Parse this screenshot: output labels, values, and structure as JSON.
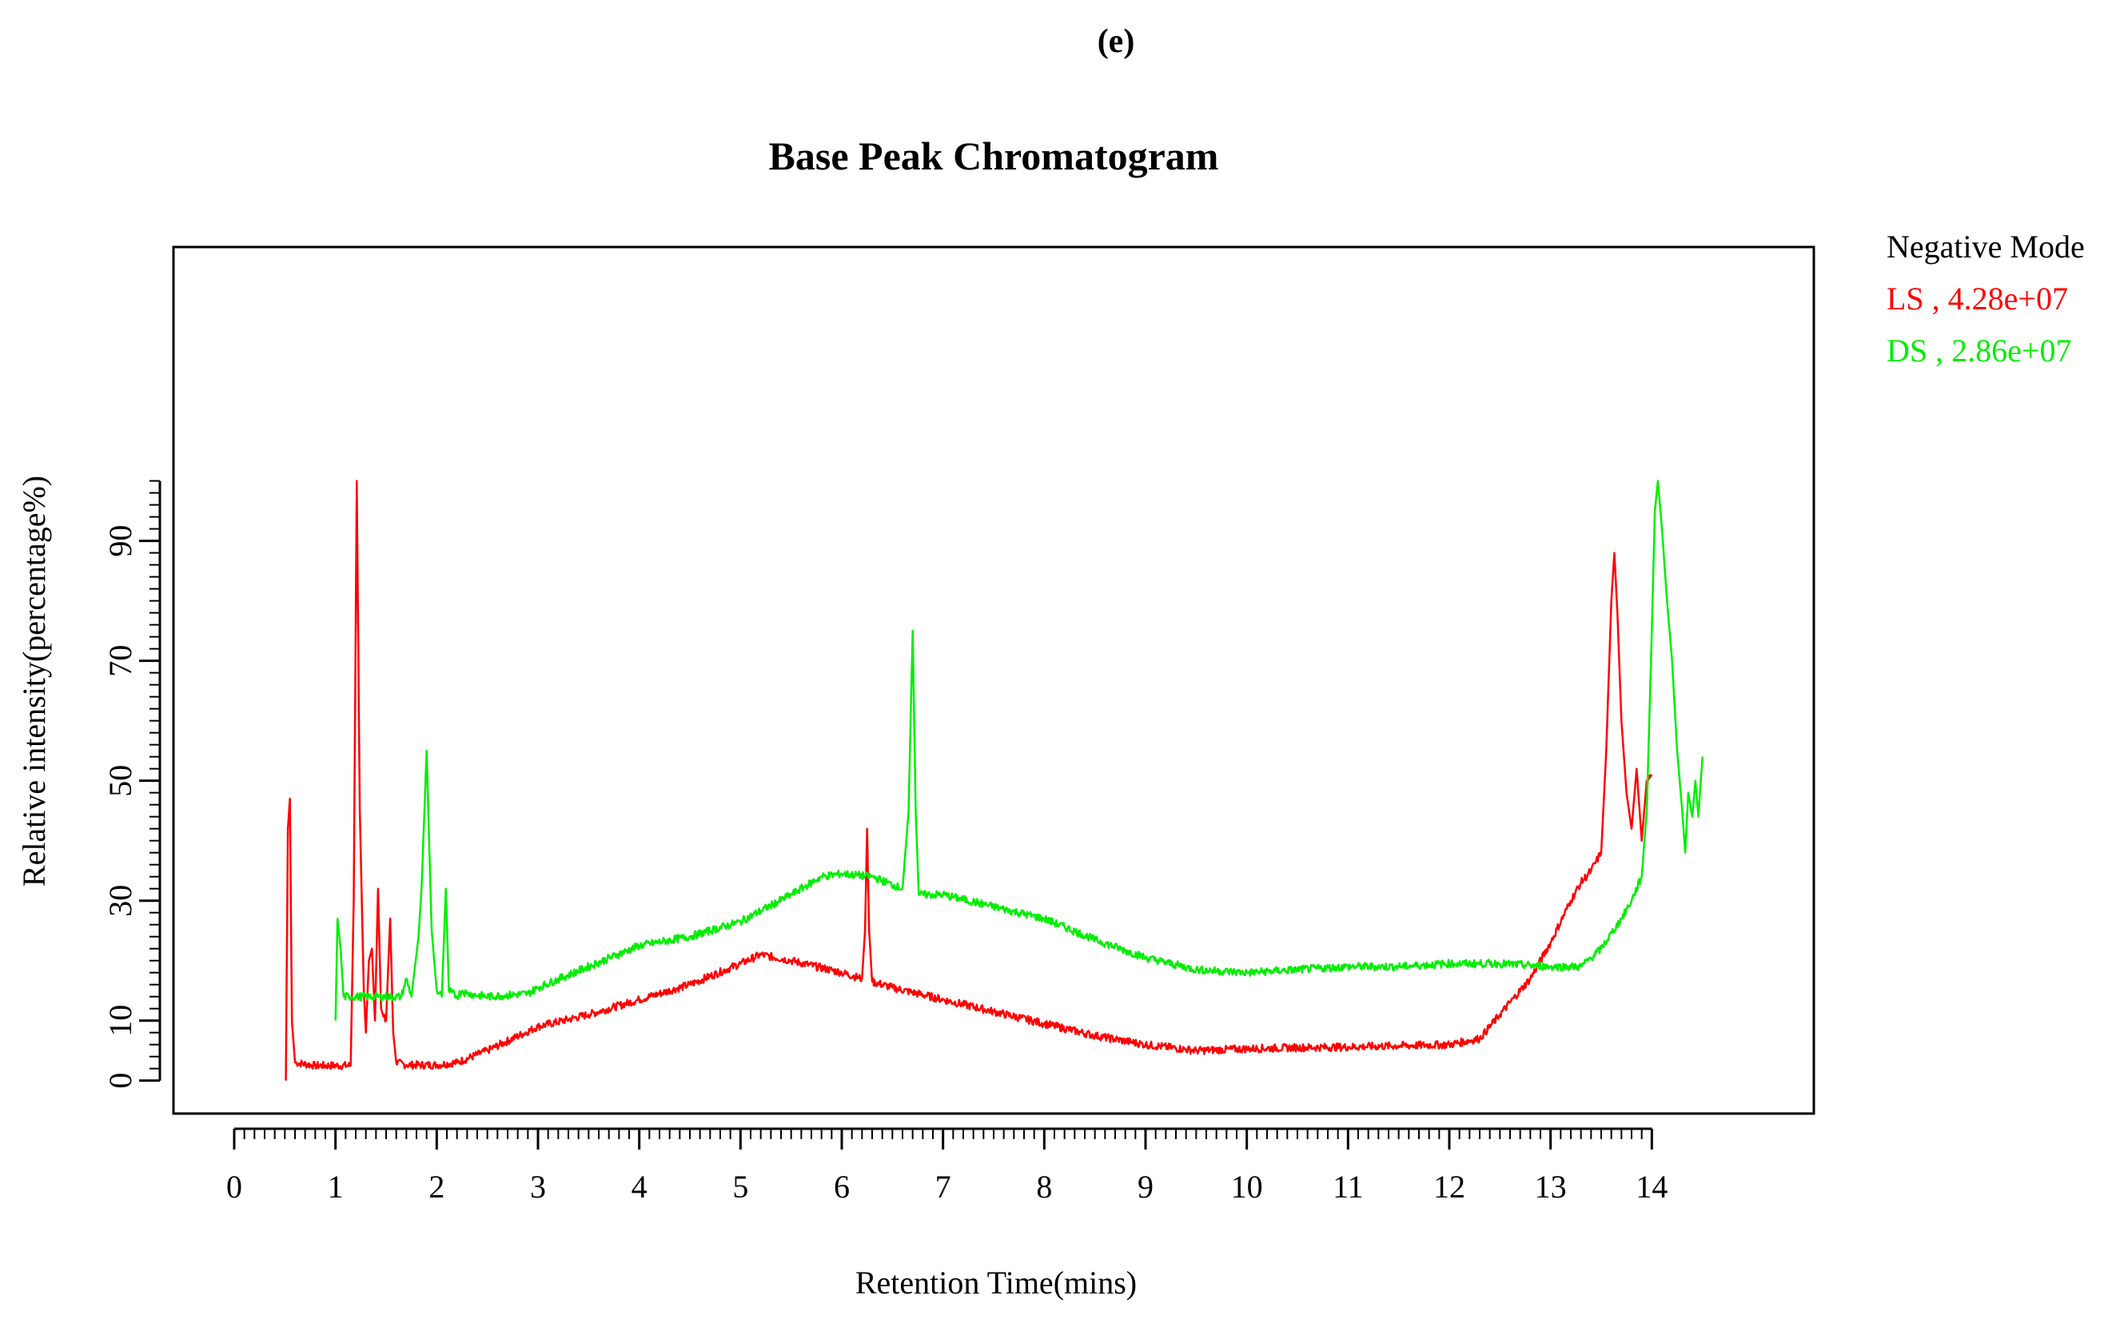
{
  "panel_label": "(e)",
  "chart_data": {
    "type": "line",
    "title": "Base Peak Chromatogram",
    "xlabel": "Retention Time(mins)",
    "ylabel": "Relative intensity(percentage%)",
    "xlim": [
      -0.6,
      15.6
    ],
    "ylim": [
      -5.5,
      139
    ],
    "x_ticks": [
      0,
      1,
      2,
      3,
      4,
      5,
      6,
      7,
      8,
      9,
      10,
      11,
      12,
      13,
      14
    ],
    "x_tick_labels": [
      "0",
      "1",
      "2",
      "3",
      "4",
      "5",
      "6",
      "7",
      "8",
      "9",
      "10",
      "11",
      "12",
      "13",
      "14"
    ],
    "y_ticks": [
      0,
      10,
      30,
      50,
      70,
      90
    ],
    "y_tick_labels": [
      "0",
      "10",
      "30",
      "50",
      "70",
      "90"
    ],
    "grid": false,
    "legend": {
      "placement": "outside-top-right",
      "title": "Negative Mode",
      "entries": [
        {
          "label": "LS , 4.28e+07",
          "color": "#ff0000"
        },
        {
          "label": "DS , 2.86e+07",
          "color": "#00ee00"
        }
      ]
    },
    "series": [
      {
        "name": "LS",
        "color": "#ff0000",
        "points": [
          [
            0.51,
            0
          ],
          [
            0.53,
            42
          ],
          [
            0.55,
            47
          ],
          [
            0.57,
            10
          ],
          [
            0.6,
            3
          ],
          [
            0.8,
            2.5
          ],
          [
            1.15,
            2.5
          ],
          [
            1.18,
            30
          ],
          [
            1.21,
            100
          ],
          [
            1.24,
            45
          ],
          [
            1.28,
            15
          ],
          [
            1.3,
            8
          ],
          [
            1.33,
            20
          ],
          [
            1.36,
            22
          ],
          [
            1.39,
            10
          ],
          [
            1.42,
            32
          ],
          [
            1.45,
            12
          ],
          [
            1.5,
            10
          ],
          [
            1.54,
            27
          ],
          [
            1.57,
            8
          ],
          [
            1.6,
            3
          ],
          [
            1.7,
            2.6
          ],
          [
            2.0,
            2.6
          ],
          [
            2.2,
            3
          ],
          [
            2.5,
            5
          ],
          [
            3.0,
            9
          ],
          [
            3.5,
            11
          ],
          [
            4.0,
            13.5
          ],
          [
            4.5,
            16
          ],
          [
            5.0,
            19.5
          ],
          [
            5.2,
            21
          ],
          [
            5.5,
            20
          ],
          [
            6.0,
            18
          ],
          [
            6.2,
            17
          ],
          [
            6.23,
            25
          ],
          [
            6.25,
            42
          ],
          [
            6.27,
            25
          ],
          [
            6.3,
            16.5
          ],
          [
            6.5,
            15.5
          ],
          [
            7.0,
            13.5
          ],
          [
            7.5,
            11.5
          ],
          [
            8.0,
            9.5
          ],
          [
            8.5,
            7.5
          ],
          [
            9.0,
            6
          ],
          [
            9.5,
            5
          ],
          [
            10.0,
            5.3
          ],
          [
            10.5,
            5.5
          ],
          [
            11.0,
            5.6
          ],
          [
            11.5,
            5.8
          ],
          [
            12.0,
            6
          ],
          [
            12.3,
            7
          ],
          [
            12.5,
            11
          ],
          [
            12.8,
            17
          ],
          [
            13.0,
            23
          ],
          [
            13.2,
            30
          ],
          [
            13.3,
            33
          ],
          [
            13.4,
            35
          ],
          [
            13.5,
            38
          ],
          [
            13.55,
            55
          ],
          [
            13.6,
            80
          ],
          [
            13.63,
            88
          ],
          [
            13.66,
            78
          ],
          [
            13.7,
            60
          ],
          [
            13.75,
            48
          ],
          [
            13.8,
            42
          ],
          [
            13.85,
            52
          ],
          [
            13.9,
            40
          ],
          [
            13.95,
            50
          ],
          [
            14.0,
            51
          ]
        ]
      },
      {
        "name": "DS",
        "color": "#00ee00",
        "points": [
          [
            1.0,
            10
          ],
          [
            1.02,
            27
          ],
          [
            1.05,
            22
          ],
          [
            1.08,
            14
          ],
          [
            1.3,
            14
          ],
          [
            1.65,
            14
          ],
          [
            1.7,
            17
          ],
          [
            1.75,
            14
          ],
          [
            1.82,
            24
          ],
          [
            1.85,
            32
          ],
          [
            1.9,
            55
          ],
          [
            1.95,
            25
          ],
          [
            2.0,
            15
          ],
          [
            2.05,
            14
          ],
          [
            2.09,
            32
          ],
          [
            2.12,
            15
          ],
          [
            2.2,
            14
          ],
          [
            2.25,
            15
          ],
          [
            2.3,
            14.5
          ],
          [
            2.5,
            14
          ],
          [
            2.9,
            14.5
          ],
          [
            3.0,
            15.5
          ],
          [
            3.5,
            19
          ],
          [
            4.0,
            22.5
          ],
          [
            4.5,
            24
          ],
          [
            5.0,
            26.5
          ],
          [
            5.5,
            31
          ],
          [
            5.8,
            34
          ],
          [
            6.0,
            34.5
          ],
          [
            6.3,
            34
          ],
          [
            6.6,
            32
          ],
          [
            6.66,
            45
          ],
          [
            6.7,
            75
          ],
          [
            6.73,
            45
          ],
          [
            6.76,
            31
          ],
          [
            7.0,
            31
          ],
          [
            7.5,
            29
          ],
          [
            8.0,
            27
          ],
          [
            8.5,
            23.5
          ],
          [
            9.0,
            20.5
          ],
          [
            9.5,
            18.5
          ],
          [
            10.0,
            18
          ],
          [
            10.5,
            18.5
          ],
          [
            11.0,
            19
          ],
          [
            11.5,
            19
          ],
          [
            12.0,
            19.5
          ],
          [
            12.5,
            19.5
          ],
          [
            13.0,
            19
          ],
          [
            13.3,
            19
          ],
          [
            13.5,
            22
          ],
          [
            13.7,
            27
          ],
          [
            13.8,
            30
          ],
          [
            13.9,
            34
          ],
          [
            13.95,
            45
          ],
          [
            14.0,
            75
          ],
          [
            14.03,
            95
          ],
          [
            14.06,
            100
          ],
          [
            14.1,
            92
          ],
          [
            14.15,
            80
          ],
          [
            14.2,
            70
          ],
          [
            14.25,
            55
          ],
          [
            14.3,
            45
          ],
          [
            14.33,
            38
          ],
          [
            14.36,
            48
          ],
          [
            14.4,
            44
          ],
          [
            14.43,
            50
          ],
          [
            14.46,
            44
          ],
          [
            14.5,
            54
          ]
        ]
      }
    ]
  }
}
